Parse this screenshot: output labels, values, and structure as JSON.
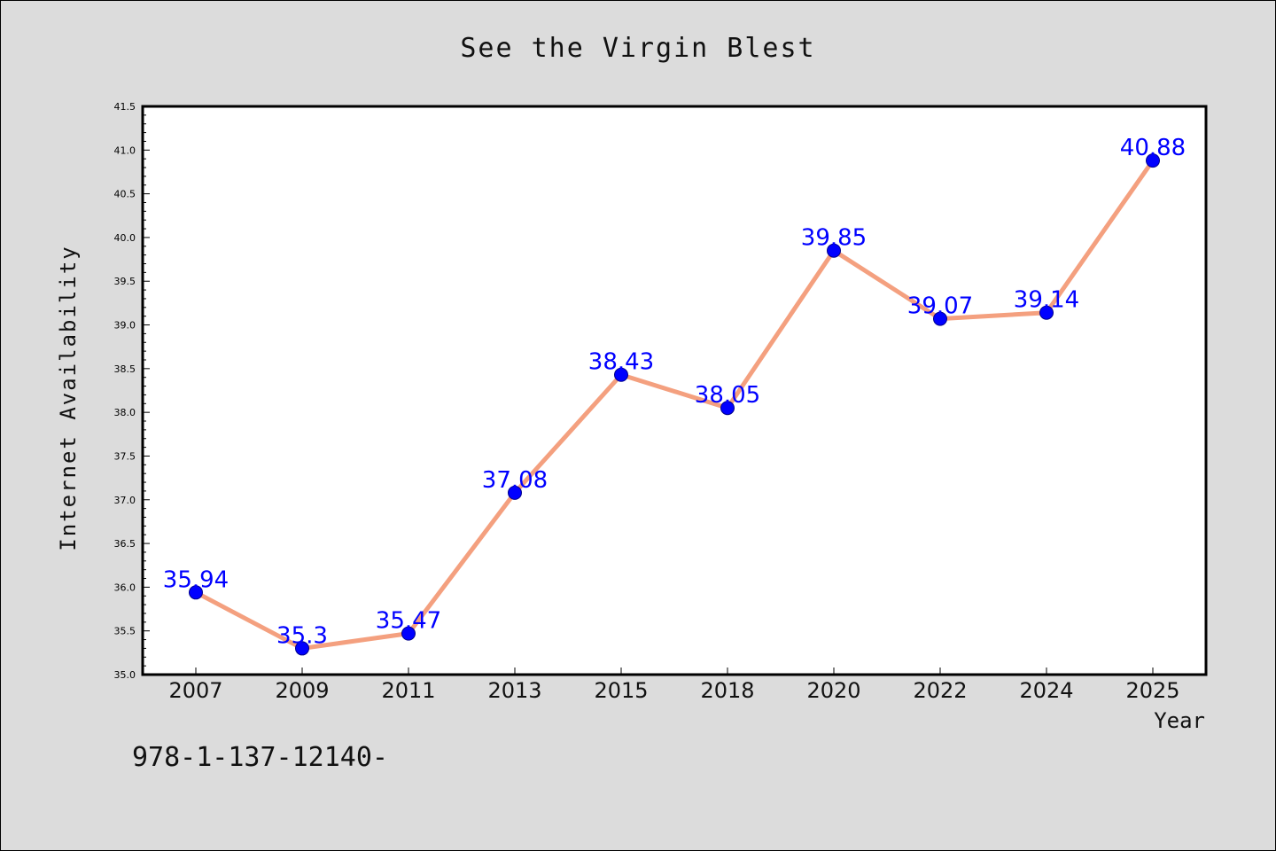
{
  "chart_data": {
    "type": "line",
    "title": "See the Virgin Blest",
    "xlabel": "Year",
    "ylabel": "Internet Availability",
    "categories": [
      "2007",
      "2009",
      "2011",
      "2013",
      "2015",
      "2018",
      "2020",
      "2022",
      "2024",
      "2025"
    ],
    "series": [
      {
        "values": [
          35.94,
          35.3,
          35.47,
          37.08,
          38.43,
          38.05,
          39.85,
          39.07,
          39.14,
          40.88
        ],
        "data_labels": [
          "35.94",
          "35.3",
          "35.47",
          "37.08",
          "38.43",
          "38.05",
          "39.85",
          "39.07",
          "39.14",
          "40.88"
        ],
        "line_color": "#f4a07f",
        "marker_color": "#0000ff"
      }
    ],
    "ylim": [
      35.0,
      41.5
    ],
    "yticks": [
      "35.0",
      "35.5",
      "36.0",
      "36.5",
      "37.0",
      "37.5",
      "38.0",
      "38.5",
      "39.0",
      "39.5",
      "40.0",
      "40.5",
      "41.0",
      "41.5"
    ],
    "grid": false,
    "legend": "none"
  },
  "footer": {
    "text": "978-1-137-12140-"
  },
  "colors": {
    "background": "#dcdcdc",
    "plot_background": "#ffffff",
    "line": "#f4a07f",
    "marker": "#0000ff",
    "data_label": "#0000ff"
  }
}
